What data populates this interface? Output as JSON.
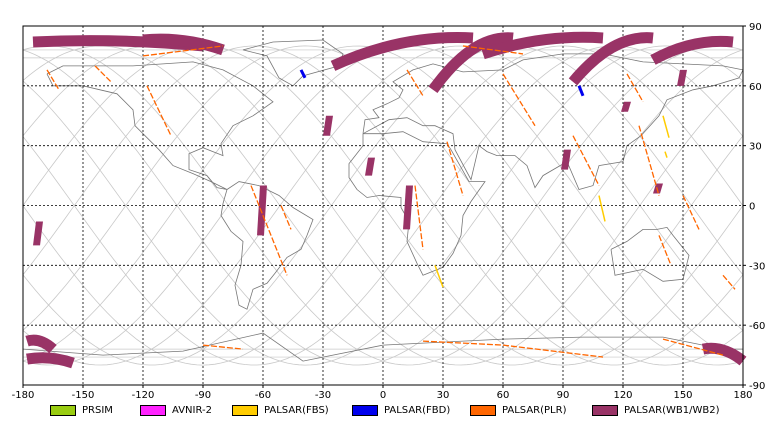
{
  "map": {
    "projection": "equirectangular",
    "lon_range": [
      -180,
      180
    ],
    "lat_range": [
      -90,
      90
    ],
    "lon_ticks": [
      "-180",
      "-150",
      "-120",
      "-90",
      "-60",
      "-30",
      "0",
      "30",
      "60",
      "90",
      "120",
      "150",
      "180"
    ],
    "lat_ticks": [
      "90",
      "60",
      "30",
      "0",
      "-30",
      "-60",
      "-90"
    ],
    "grid": "dashed"
  },
  "legend": {
    "items": [
      {
        "label": "PRSIM",
        "color": "#99cc11"
      },
      {
        "label": "AVNIR-2",
        "color": "#ff22ff"
      },
      {
        "label": "PALSAR(FBS)",
        "color": "#ffcc00"
      },
      {
        "label": "PALSAR(FBD)",
        "color": "#0000ee"
      },
      {
        "label": "PALSAR(PLR)",
        "color": "#ff6600"
      },
      {
        "label": "PALSAR(WB1/WB2)",
        "color": "#993366"
      }
    ]
  },
  "coverage": {
    "wb_strips": [
      {
        "lon": -172,
        "lat_from": -8,
        "lat_to": -20
      },
      {
        "lon": -60,
        "lat_from": 10,
        "lat_to": -15
      },
      {
        "lon": -27,
        "lat_from": 45,
        "lat_to": 35
      },
      {
        "lon": -6,
        "lat_from": 24,
        "lat_to": 15
      },
      {
        "lon": 13,
        "lat_from": 10,
        "lat_to": -12
      },
      {
        "lon": 92,
        "lat_from": 28,
        "lat_to": 18
      },
      {
        "lon": 122,
        "lat_from": 52,
        "lat_to": 47
      },
      {
        "lon": 138,
        "lat_from": 11,
        "lat_to": 6
      },
      {
        "lon": 150,
        "lat_from": 68,
        "lat_to": 60
      }
    ],
    "fbs_lines": [
      {
        "lon1": 26,
        "lat1": -30,
        "lon2": 30,
        "lat2": -41
      },
      {
        "lon1": 108,
        "lat1": 5,
        "lon2": 111,
        "lat2": -8
      },
      {
        "lon1": 140,
        "lat1": 45,
        "lon2": 143,
        "lat2": 34
      },
      {
        "lon1": 141,
        "lat1": 27,
        "lon2": 142,
        "lat2": 24
      }
    ],
    "fbd_lines": [
      {
        "lon1": -41,
        "lat1": 68,
        "lon2": -39,
        "lat2": 64
      },
      {
        "lon1": 98,
        "lat1": 60,
        "lon2": 100,
        "lat2": 55
      }
    ],
    "plr_lines": [
      {
        "lon1": -168,
        "lat1": 68,
        "lon2": -162,
        "lat2": 58
      },
      {
        "lon1": -144,
        "lat1": 70,
        "lon2": -136,
        "lat2": 62
      },
      {
        "lon1": -118,
        "lat1": 60,
        "lon2": -106,
        "lat2": 35
      },
      {
        "lon1": -66,
        "lat1": 10,
        "lon2": -48,
        "lat2": -35
      },
      {
        "lon1": -51,
        "lat1": 0,
        "lon2": -46,
        "lat2": -12
      },
      {
        "lon1": 12,
        "lat1": 68,
        "lon2": 20,
        "lat2": 55
      },
      {
        "lon1": 16,
        "lat1": 10,
        "lon2": 20,
        "lat2": -22
      },
      {
        "lon1": 32,
        "lat1": 32,
        "lon2": 40,
        "lat2": 5
      },
      {
        "lon1": 60,
        "lat1": 66,
        "lon2": 76,
        "lat2": 40
      },
      {
        "lon1": 95,
        "lat1": 35,
        "lon2": 108,
        "lat2": 10
      },
      {
        "lon1": 122,
        "lat1": 66,
        "lon2": 130,
        "lat2": 52
      },
      {
        "lon1": 128,
        "lat1": 40,
        "lon2": 138,
        "lat2": 5
      },
      {
        "lon1": 150,
        "lat1": 5,
        "lon2": 158,
        "lat2": -12
      },
      {
        "lon1": 138,
        "lat1": -15,
        "lon2": 144,
        "lat2": -30
      },
      {
        "lon1": 170,
        "lat1": -35,
        "lon2": 176,
        "lat2": -42
      },
      {
        "lon1": 20,
        "lat1": -68,
        "lon2": 60,
        "lat2": -70
      },
      {
        "lon1": 60,
        "lat1": -70,
        "lon2": 110,
        "lat2": -76
      },
      {
        "lon1": 140,
        "lat1": -67,
        "lon2": 170,
        "lat2": -75
      },
      {
        "lon1": -90,
        "lat1": -70,
        "lon2": -70,
        "lat2": -72
      },
      {
        "lon1": -120,
        "lat1": 75,
        "lon2": -80,
        "lat2": 80
      },
      {
        "lon1": 40,
        "lat1": 80,
        "lon2": 70,
        "lat2": 76
      }
    ],
    "wb_arcs": [
      {
        "lon1": -175,
        "lat1": 82,
        "lon2": -90,
        "lat2": 80
      },
      {
        "lon1": -120,
        "lat1": 83,
        "lon2": -80,
        "lat2": 78
      },
      {
        "lon1": -25,
        "lat1": 70,
        "lon2": 45,
        "lat2": 84
      },
      {
        "lon1": 25,
        "lat1": 58,
        "lon2": 65,
        "lat2": 84
      },
      {
        "lon1": 50,
        "lat1": 76,
        "lon2": 110,
        "lat2": 84
      },
      {
        "lon1": 95,
        "lat1": 62,
        "lon2": 135,
        "lat2": 84
      },
      {
        "lon1": 135,
        "lat1": 73,
        "lon2": 175,
        "lat2": 82
      },
      {
        "lon1": -178,
        "lat1": -68,
        "lon2": -165,
        "lat2": -72
      },
      {
        "lon1": -178,
        "lat1": -77,
        "lon2": -155,
        "lat2": -79
      },
      {
        "lon1": 160,
        "lat1": -72,
        "lon2": 180,
        "lat2": -78
      }
    ]
  }
}
